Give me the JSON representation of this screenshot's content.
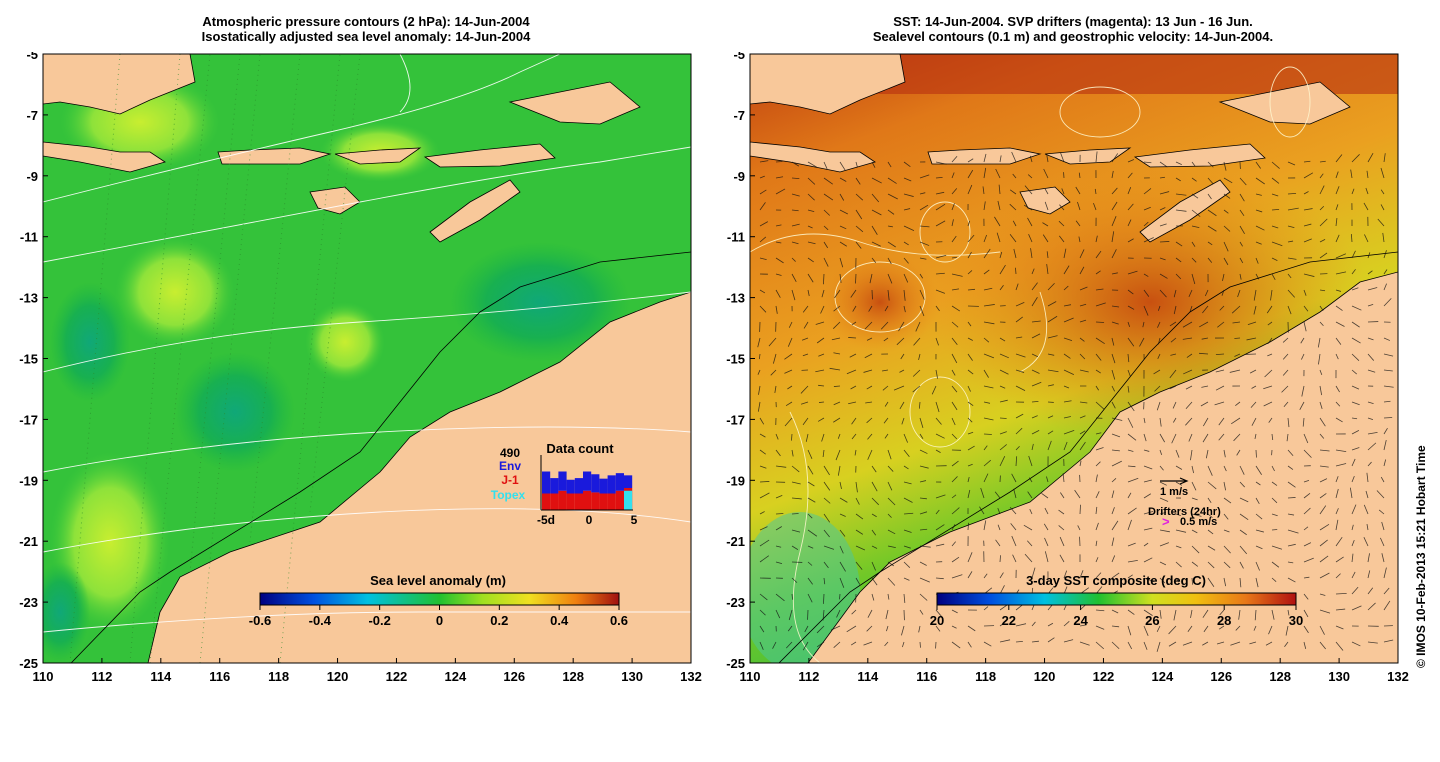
{
  "left_panel": {
    "title_line1": "Atmospheric pressure contours (2 hPa): 14-Jun-2004",
    "title_line2": "Isostatically adjusted sea level anomaly: 14-Jun-2004",
    "colorbar_label": "Sea level anomaly (m)",
    "colorbar_ticks": [
      "-0.6",
      "-0.4",
      "-0.2",
      "0",
      "0.2",
      "0.4",
      "0.6"
    ],
    "data_count": {
      "title": "Data count",
      "total": "490",
      "legend": [
        {
          "name": "Env",
          "color": "#1a1adc"
        },
        {
          "name": "J-1",
          "color": "#e01010"
        },
        {
          "name": "Topex",
          "color": "#33e0ee"
        }
      ],
      "x_ticks": [
        "-5d",
        "0",
        "5"
      ],
      "bars": [
        {
          "env": 0.4,
          "j1": 0.3,
          "topex": 0
        },
        {
          "env": 0.28,
          "j1": 0.3,
          "topex": 0
        },
        {
          "env": 0.35,
          "j1": 0.35,
          "topex": 0
        },
        {
          "env": 0.25,
          "j1": 0.3,
          "topex": 0
        },
        {
          "env": 0.28,
          "j1": 0.3,
          "topex": 0
        },
        {
          "env": 0.35,
          "j1": 0.35,
          "topex": 0
        },
        {
          "env": 0.33,
          "j1": 0.32,
          "topex": 0
        },
        {
          "env": 0.27,
          "j1": 0.3,
          "topex": 0
        },
        {
          "env": 0.33,
          "j1": 0.3,
          "topex": 0
        },
        {
          "env": 0.32,
          "j1": 0.35,
          "topex": 0
        },
        {
          "env": 0.23,
          "j1": 0.4,
          "topex": 0.35
        }
      ]
    }
  },
  "right_panel": {
    "title_line1": "SST: 14-Jun-2004. SVP drifters (magenta): 13 Jun - 16 Jun.",
    "title_line2": "Sealevel contours (0.1 m) and geostrophic velocity: 14-Jun-2004.",
    "colorbar_label": "3-day SST composite (deg C)",
    "colorbar_ticks": [
      "20",
      "22",
      "24",
      "26",
      "28",
      "30"
    ],
    "velocity_legend": "1 m/s",
    "drifters_legend": "Drifters (24hr)",
    "drifters_speed": "0.5 m/s",
    "drifter_symbol": ">"
  },
  "axes": {
    "x_ticks": [
      "110",
      "112",
      "114",
      "116",
      "118",
      "120",
      "122",
      "124",
      "126",
      "128",
      "130",
      "132"
    ],
    "y_ticks": [
      "-5",
      "-7",
      "-9",
      "-11",
      "-13",
      "-15",
      "-17",
      "-19",
      "-21",
      "-23",
      "-25"
    ]
  },
  "credit": "© IMOS 10-Feb-2013 15:21 Hobart Time",
  "colors": {
    "land": "#f8c89a",
    "ocean_green": "#22c238",
    "ocean_light": "#7ee040",
    "sst_orange": "#e89018",
    "sst_red": "#c03010"
  }
}
